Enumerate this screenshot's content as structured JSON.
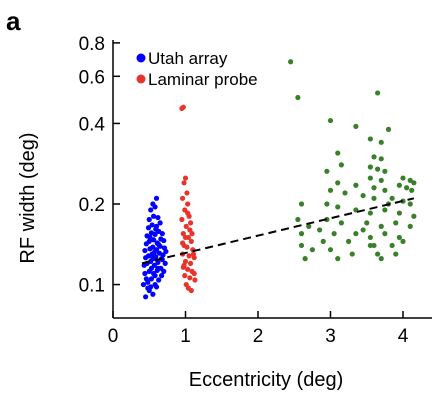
{
  "panel_label": "a",
  "chart_data": {
    "type": "scatter",
    "xlabel": "Eccentricity (deg)",
    "ylabel": "RF width (deg)",
    "xlim": [
      0,
      4.4
    ],
    "ylim": [
      0.075,
      0.82
    ],
    "y_scale": "log",
    "x_ticks": [
      0,
      1,
      2,
      3,
      4
    ],
    "x_tick_labels": [
      "0",
      "1",
      "2",
      "3",
      "4"
    ],
    "y_ticks": [
      0.1,
      0.2,
      0.4,
      0.6,
      0.8
    ],
    "y_tick_labels": [
      "0.1",
      "0.2",
      "0.4",
      "0.6",
      "0.8"
    ],
    "grid": false,
    "legend_position": "top-left",
    "series": [
      {
        "name": "Utah array",
        "color": "#0000ff",
        "points": [
          [
            0.45,
            0.09
          ],
          [
            0.5,
            0.095
          ],
          [
            0.55,
            0.092
          ],
          [
            0.6,
            0.098
          ],
          [
            0.42,
            0.1
          ],
          [
            0.48,
            0.102
          ],
          [
            0.53,
            0.105
          ],
          [
            0.58,
            0.1
          ],
          [
            0.63,
            0.104
          ],
          [
            0.67,
            0.108
          ],
          [
            0.44,
            0.11
          ],
          [
            0.5,
            0.112
          ],
          [
            0.56,
            0.11
          ],
          [
            0.61,
            0.113
          ],
          [
            0.66,
            0.115
          ],
          [
            0.7,
            0.112
          ],
          [
            0.43,
            0.118
          ],
          [
            0.47,
            0.12
          ],
          [
            0.52,
            0.122
          ],
          [
            0.57,
            0.118
          ],
          [
            0.62,
            0.121
          ],
          [
            0.68,
            0.124
          ],
          [
            0.72,
            0.12
          ],
          [
            0.45,
            0.126
          ],
          [
            0.49,
            0.128
          ],
          [
            0.54,
            0.13
          ],
          [
            0.59,
            0.127
          ],
          [
            0.64,
            0.131
          ],
          [
            0.69,
            0.129
          ],
          [
            0.73,
            0.133
          ],
          [
            0.44,
            0.134
          ],
          [
            0.51,
            0.136
          ],
          [
            0.55,
            0.138
          ],
          [
            0.6,
            0.135
          ],
          [
            0.65,
            0.139
          ],
          [
            0.71,
            0.137
          ],
          [
            0.46,
            0.142
          ],
          [
            0.5,
            0.145
          ],
          [
            0.56,
            0.147
          ],
          [
            0.61,
            0.143
          ],
          [
            0.66,
            0.148
          ],
          [
            0.7,
            0.146
          ],
          [
            0.47,
            0.152
          ],
          [
            0.53,
            0.156
          ],
          [
            0.58,
            0.154
          ],
          [
            0.63,
            0.158
          ],
          [
            0.68,
            0.155
          ],
          [
            0.49,
            0.163
          ],
          [
            0.54,
            0.167
          ],
          [
            0.6,
            0.165
          ],
          [
            0.65,
            0.17
          ],
          [
            0.5,
            0.175
          ],
          [
            0.56,
            0.18
          ],
          [
            0.62,
            0.178
          ],
          [
            0.52,
            0.19
          ],
          [
            0.58,
            0.195
          ],
          [
            0.55,
            0.2
          ],
          [
            0.6,
            0.21
          ],
          [
            0.53,
            0.115
          ],
          [
            0.58,
            0.108
          ],
          [
            0.48,
            0.097
          ],
          [
            0.62,
            0.115
          ],
          [
            0.67,
            0.125
          ],
          [
            0.46,
            0.105
          ],
          [
            0.52,
            0.098
          ],
          [
            0.57,
            0.132
          ],
          [
            0.63,
            0.141
          ],
          [
            0.51,
            0.15
          ],
          [
            0.59,
            0.161
          ],
          [
            0.55,
            0.125
          ]
        ]
      },
      {
        "name": "Laminar probe",
        "color": "#e8342a",
        "points": [
          [
            0.95,
            0.455
          ],
          [
            0.97,
            0.46
          ],
          [
            1.0,
            0.25
          ],
          [
            0.98,
            0.24
          ],
          [
            1.02,
            0.22
          ],
          [
            0.96,
            0.21
          ],
          [
            1.03,
            0.2
          ],
          [
            0.99,
            0.19
          ],
          [
            1.05,
            0.18
          ],
          [
            0.95,
            0.175
          ],
          [
            1.01,
            0.165
          ],
          [
            1.06,
            0.16
          ],
          [
            0.97,
            0.155
          ],
          [
            1.04,
            0.15
          ],
          [
            1.08,
            0.145
          ],
          [
            0.98,
            0.14
          ],
          [
            1.02,
            0.138
          ],
          [
            1.1,
            0.135
          ],
          [
            0.96,
            0.13
          ],
          [
            1.05,
            0.128
          ],
          [
            1.12,
            0.126
          ],
          [
            1.0,
            0.122
          ],
          [
            1.07,
            0.12
          ],
          [
            0.97,
            0.116
          ],
          [
            1.03,
            0.114
          ],
          [
            1.09,
            0.112
          ],
          [
            0.99,
            0.108
          ],
          [
            1.06,
            0.106
          ],
          [
            1.13,
            0.104
          ],
          [
            1.01,
            0.1
          ],
          [
            1.04,
            0.097
          ],
          [
            1.08,
            0.095
          ],
          [
            0.98,
            0.118
          ],
          [
            1.11,
            0.13
          ],
          [
            1.0,
            0.15
          ],
          [
            1.07,
            0.17
          ],
          [
            1.03,
            0.185
          ],
          [
            0.96,
            0.143
          ],
          [
            1.09,
            0.155
          ],
          [
            1.12,
            0.11
          ]
        ]
      },
      {
        "name": "",
        "color": "#3a7f2a",
        "points": [
          [
            2.45,
            0.68
          ],
          [
            2.55,
            0.5
          ],
          [
            3.65,
            0.52
          ],
          [
            3.0,
            0.41
          ],
          [
            3.35,
            0.39
          ],
          [
            3.8,
            0.38
          ],
          [
            3.55,
            0.35
          ],
          [
            3.7,
            0.34
          ],
          [
            3.1,
            0.31
          ],
          [
            3.6,
            0.3
          ],
          [
            3.7,
            0.295
          ],
          [
            3.15,
            0.28
          ],
          [
            3.55,
            0.275
          ],
          [
            3.65,
            0.27
          ],
          [
            3.75,
            0.265
          ],
          [
            2.95,
            0.265
          ],
          [
            3.55,
            0.25
          ],
          [
            3.7,
            0.245
          ],
          [
            3.1,
            0.24
          ],
          [
            3.35,
            0.235
          ],
          [
            3.6,
            0.23
          ],
          [
            3.75,
            0.225
          ],
          [
            4.0,
            0.25
          ],
          [
            4.1,
            0.245
          ],
          [
            4.15,
            0.24
          ],
          [
            3.95,
            0.235
          ],
          [
            4.05,
            0.23
          ],
          [
            4.12,
            0.225
          ],
          [
            3.0,
            0.225
          ],
          [
            3.2,
            0.22
          ],
          [
            3.45,
            0.215
          ],
          [
            3.6,
            0.21
          ],
          [
            3.85,
            0.21
          ],
          [
            4.0,
            0.205
          ],
          [
            4.1,
            0.2
          ],
          [
            2.6,
            0.2
          ],
          [
            2.95,
            0.2
          ],
          [
            3.1,
            0.195
          ],
          [
            3.35,
            0.19
          ],
          [
            3.55,
            0.185
          ],
          [
            3.75,
            0.19
          ],
          [
            3.95,
            0.185
          ],
          [
            4.15,
            0.18
          ],
          [
            2.95,
            0.175
          ],
          [
            3.15,
            0.17
          ],
          [
            3.5,
            0.17
          ],
          [
            3.7,
            0.165
          ],
          [
            3.9,
            0.17
          ],
          [
            4.1,
            0.165
          ],
          [
            2.7,
            0.165
          ],
          [
            2.85,
            0.16
          ],
          [
            3.05,
            0.155
          ],
          [
            3.35,
            0.155
          ],
          [
            3.55,
            0.15
          ],
          [
            3.75,
            0.155
          ],
          [
            3.95,
            0.15
          ],
          [
            4.0,
            0.145
          ],
          [
            2.6,
            0.155
          ],
          [
            2.9,
            0.145
          ],
          [
            3.25,
            0.145
          ],
          [
            3.55,
            0.14
          ],
          [
            3.85,
            0.14
          ],
          [
            2.6,
            0.14
          ],
          [
            2.75,
            0.135
          ],
          [
            3.0,
            0.135
          ],
          [
            3.3,
            0.13
          ],
          [
            3.65,
            0.13
          ],
          [
            3.9,
            0.13
          ],
          [
            2.65,
            0.125
          ],
          [
            3.1,
            0.125
          ],
          [
            3.7,
            0.125
          ],
          [
            3.6,
            0.14
          ],
          [
            3.45,
            0.16
          ],
          [
            2.55,
            0.175
          ],
          [
            3.8,
            0.2
          ]
        ]
      }
    ],
    "trend_line": {
      "style": "dashed",
      "color": "#000000",
      "points": [
        [
          0.4,
          0.12
        ],
        [
          4.15,
          0.21
        ]
      ]
    }
  }
}
